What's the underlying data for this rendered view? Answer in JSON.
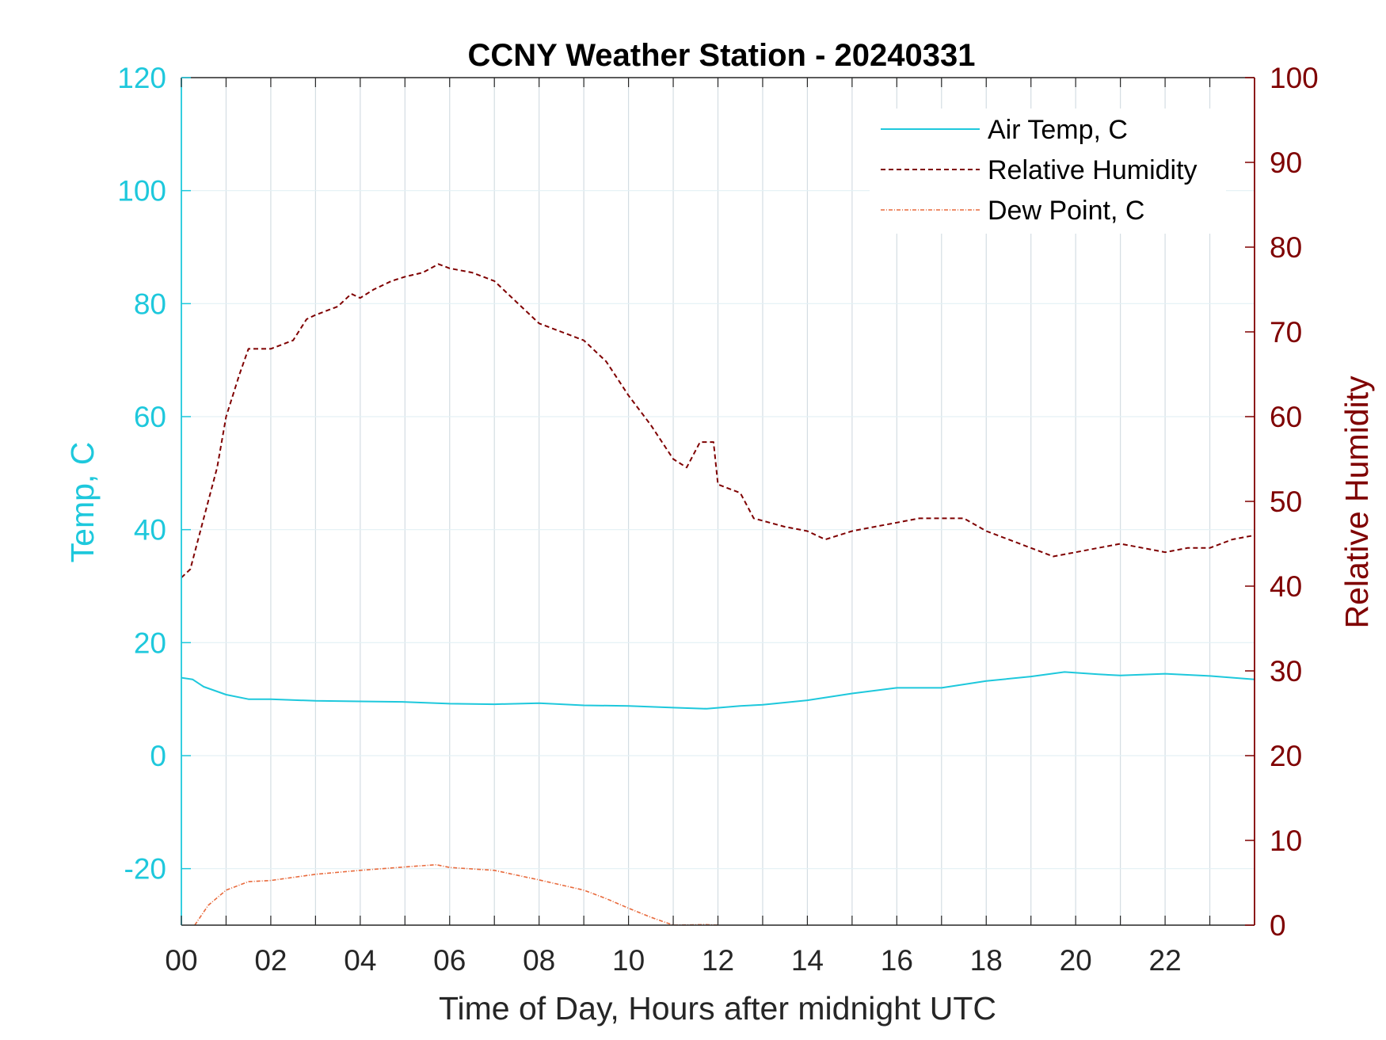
{
  "chart_data": {
    "type": "line",
    "title": "CCNY Weather Station - 20240331",
    "xlabel": "Time of Day, Hours after midnight UTC",
    "ylabel_left": "Temp, C",
    "ylabel_right": "Relative Humidity",
    "xlim": [
      0,
      24
    ],
    "ylim_left": [
      -30,
      120
    ],
    "ylim_right": [
      0,
      100
    ],
    "x_ticks": [
      0,
      2,
      4,
      6,
      8,
      10,
      12,
      14,
      16,
      18,
      20,
      22
    ],
    "x_tick_labels": [
      "00",
      "02",
      "04",
      "06",
      "08",
      "10",
      "12",
      "14",
      "16",
      "18",
      "20",
      "22"
    ],
    "y_left_ticks": [
      -20,
      0,
      20,
      40,
      60,
      80,
      100,
      120
    ],
    "y_right_ticks": [
      0,
      10,
      20,
      30,
      40,
      50,
      60,
      70,
      80,
      90,
      100
    ],
    "grid": true,
    "legend_position": "top-right",
    "colors": {
      "air_temp": "#1ec8dc",
      "relative_humidity": "#7f0000",
      "dew_point": "#e86a3c",
      "grid": "#d4dde3"
    },
    "series": [
      {
        "name": "Air Temp, C",
        "axis": "left",
        "style": "solid",
        "x": [
          0,
          0.25,
          0.5,
          1,
          1.5,
          2,
          3,
          4,
          5,
          6,
          7,
          8,
          9,
          10,
          11,
          11.75,
          12.5,
          13,
          14,
          15,
          16,
          17,
          18,
          19,
          19.75,
          20.5,
          21,
          22,
          23,
          24
        ],
        "y": [
          13.8,
          13.5,
          12.2,
          10.8,
          10.0,
          10.0,
          9.7,
          9.6,
          9.5,
          9.2,
          9.1,
          9.3,
          8.9,
          8.8,
          8.5,
          8.3,
          8.8,
          9.0,
          9.8,
          11.0,
          12.0,
          12.0,
          13.2,
          14.0,
          14.8,
          14.4,
          14.2,
          14.5,
          14.1,
          13.5
        ]
      },
      {
        "name": "Relative Humidity",
        "axis": "right",
        "style": "dashed",
        "x": [
          0,
          0.2,
          0.5,
          0.8,
          1.0,
          1.3,
          1.5,
          2,
          2.5,
          2.8,
          3.0,
          3.5,
          3.8,
          4.0,
          4.3,
          4.7,
          5.0,
          5.4,
          5.75,
          6.0,
          6.5,
          7.0,
          7.5,
          8.0,
          8.5,
          9.0,
          9.5,
          10.0,
          10.5,
          11.0,
          11.3,
          11.6,
          11.9,
          12.0,
          12.5,
          12.8,
          13.5,
          14.0,
          14.4,
          15.0,
          15.5,
          16.0,
          16.5,
          17.0,
          17.5,
          18.0,
          18.5,
          19.0,
          19.5,
          20.0,
          20.5,
          21.0,
          21.5,
          22.0,
          22.5,
          23.0,
          23.5,
          24.0
        ],
        "y": [
          41,
          42,
          48,
          54,
          60,
          65,
          68,
          68,
          69,
          71.5,
          72,
          73,
          74.5,
          74,
          75,
          76,
          76.5,
          77,
          78,
          77.5,
          77,
          76,
          73.5,
          71,
          70,
          69,
          66.5,
          62.5,
          59,
          55,
          54,
          57,
          57,
          52,
          51,
          48,
          47,
          46.5,
          45.5,
          46.5,
          47,
          47.5,
          48,
          48,
          48,
          46.5,
          45.5,
          44.5,
          43.5,
          44,
          44.5,
          45,
          44.5,
          44,
          44.5,
          44.5,
          45.5,
          46
        ]
      },
      {
        "name": "Dew Point, C",
        "axis": "left",
        "style": "dash-dot",
        "x": [
          0.3,
          0.6,
          1.0,
          1.5,
          2,
          3,
          4,
          5,
          5.7,
          6,
          7,
          8,
          9,
          9.5,
          10,
          10.5,
          11.0,
          11.7,
          12.0
        ],
        "y": [
          -30,
          -26.5,
          -23.8,
          -22.3,
          -22.1,
          -21,
          -20.3,
          -19.7,
          -19.3,
          -19.8,
          -20.3,
          -22,
          -23.8,
          -25.3,
          -27,
          -28.6,
          -30,
          -29.9,
          -30
        ]
      }
    ]
  }
}
